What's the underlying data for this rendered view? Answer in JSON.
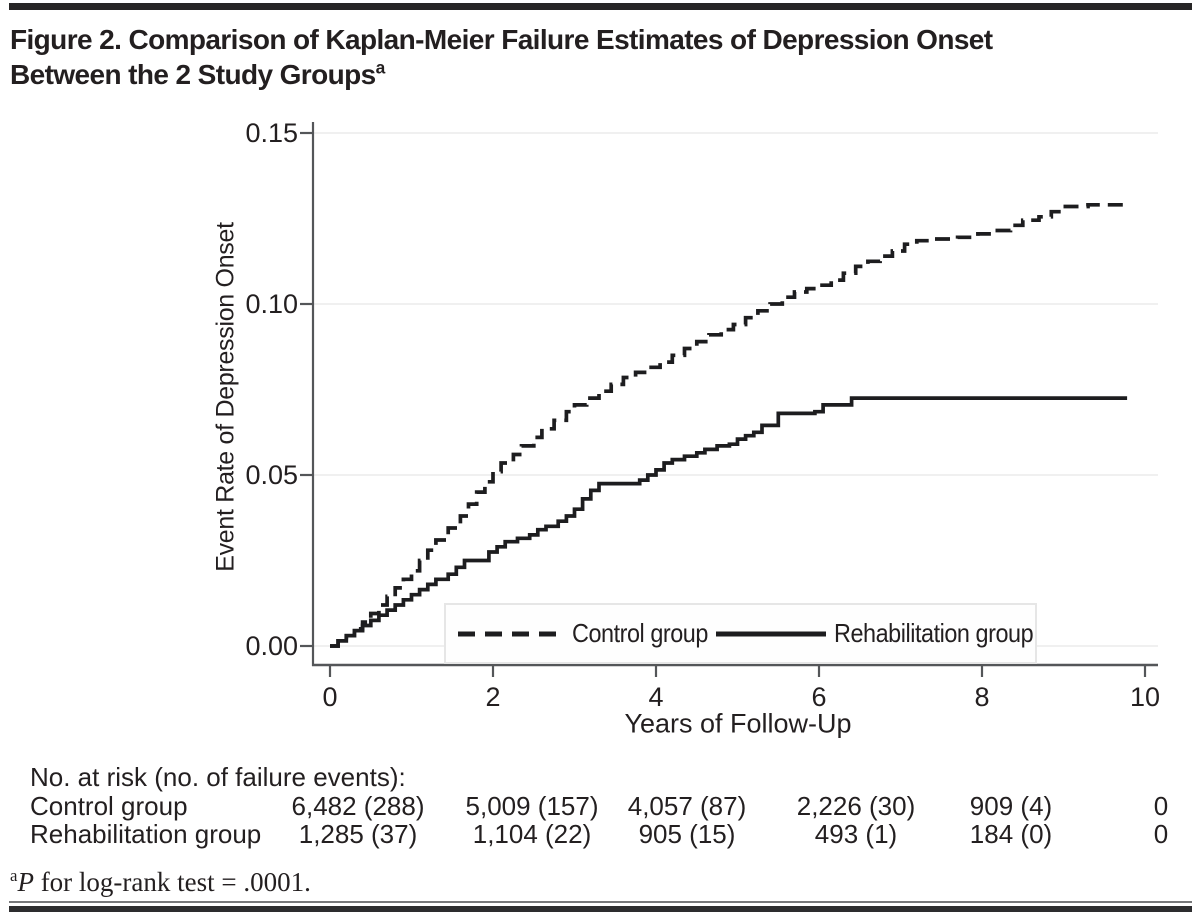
{
  "figure": {
    "title_line1": "Figure 2. Comparison of Kaplan-Meier Failure Estimates of Depression Onset",
    "title_line2": "Between the 2 Study Groups",
    "title_superscript": "a"
  },
  "chart_data": {
    "type": "line",
    "subtype": "kaplan-meier-failure-curves-step",
    "title": "Figure 2. Comparison of Kaplan-Meier Failure Estimates of Depression Onset Between the 2 Study Groups",
    "xlabel": "Years of Follow-Up",
    "ylabel": "Event Rate of Depression Onset",
    "xlim": [
      0,
      10
    ],
    "ylim": [
      0,
      0.15
    ],
    "xticks": {
      "values": [
        0,
        2,
        4,
        6,
        8,
        10
      ],
      "labels": [
        "0",
        "2",
        "4",
        "6",
        "8",
        "10"
      ]
    },
    "yticks": {
      "values": [
        0,
        0.05,
        0.1,
        0.15
      ],
      "labels": [
        "0.00",
        "0.05",
        "0.10",
        "0.15"
      ]
    },
    "grid": "horizontal-light",
    "legend_position": "inside-lower-center",
    "series": [
      {
        "name": "Control group",
        "line_style": "dashed",
        "color": "#1d1d1f",
        "points": [
          [
            0,
            0
          ],
          [
            0.1,
            0.0015
          ],
          [
            0.2,
            0.003
          ],
          [
            0.3,
            0.005
          ],
          [
            0.4,
            0.007
          ],
          [
            0.5,
            0.0095
          ],
          [
            0.6,
            0.012
          ],
          [
            0.7,
            0.0145
          ],
          [
            0.8,
            0.017
          ],
          [
            0.9,
            0.0195
          ],
          [
            1.0,
            0.022
          ],
          [
            1.1,
            0.025
          ],
          [
            1.2,
            0.028
          ],
          [
            1.3,
            0.031
          ],
          [
            1.45,
            0.0345
          ],
          [
            1.6,
            0.038
          ],
          [
            1.7,
            0.0415
          ],
          [
            1.8,
            0.045
          ],
          [
            1.9,
            0.048
          ],
          [
            2.0,
            0.051
          ],
          [
            2.1,
            0.0535
          ],
          [
            2.25,
            0.056
          ],
          [
            2.35,
            0.0585
          ],
          [
            2.5,
            0.061
          ],
          [
            2.6,
            0.0635
          ],
          [
            2.75,
            0.066
          ],
          [
            2.9,
            0.0685
          ],
          [
            3.0,
            0.0705
          ],
          [
            3.15,
            0.0725
          ],
          [
            3.3,
            0.0745
          ],
          [
            3.45,
            0.0765
          ],
          [
            3.6,
            0.0785
          ],
          [
            3.75,
            0.08
          ],
          [
            3.9,
            0.0815
          ],
          [
            4.05,
            0.083
          ],
          [
            4.2,
            0.085
          ],
          [
            4.35,
            0.087
          ],
          [
            4.5,
            0.089
          ],
          [
            4.65,
            0.091
          ],
          [
            4.8,
            0.0925
          ],
          [
            4.95,
            0.094
          ],
          [
            5.1,
            0.096
          ],
          [
            5.25,
            0.098
          ],
          [
            5.4,
            0.1
          ],
          [
            5.55,
            0.102
          ],
          [
            5.7,
            0.1035
          ],
          [
            5.85,
            0.1045
          ],
          [
            6.0,
            0.1055
          ],
          [
            6.15,
            0.107
          ],
          [
            6.3,
            0.109
          ],
          [
            6.45,
            0.111
          ],
          [
            6.6,
            0.1125
          ],
          [
            6.75,
            0.114
          ],
          [
            6.9,
            0.1155
          ],
          [
            7.05,
            0.1175
          ],
          [
            7.2,
            0.1185
          ],
          [
            7.4,
            0.119
          ],
          [
            7.7,
            0.1195
          ],
          [
            7.95,
            0.1205
          ],
          [
            8.15,
            0.1215
          ],
          [
            8.35,
            0.123
          ],
          [
            8.5,
            0.1245
          ],
          [
            8.7,
            0.1255
          ],
          [
            8.85,
            0.127
          ],
          [
            9.0,
            0.1285
          ],
          [
            9.3,
            0.129
          ],
          [
            9.75,
            0.129
          ]
        ]
      },
      {
        "name": "Rehabilitation group",
        "line_style": "solid",
        "color": "#1d1d1f",
        "points": [
          [
            0,
            0
          ],
          [
            0.1,
            0.0015
          ],
          [
            0.2,
            0.003
          ],
          [
            0.3,
            0.0045
          ],
          [
            0.4,
            0.006
          ],
          [
            0.5,
            0.0075
          ],
          [
            0.6,
            0.009
          ],
          [
            0.7,
            0.0105
          ],
          [
            0.8,
            0.012
          ],
          [
            0.9,
            0.0135
          ],
          [
            1.0,
            0.015
          ],
          [
            1.1,
            0.0165
          ],
          [
            1.2,
            0.018
          ],
          [
            1.3,
            0.0195
          ],
          [
            1.45,
            0.021
          ],
          [
            1.55,
            0.023
          ],
          [
            1.65,
            0.025
          ],
          [
            1.95,
            0.0275
          ],
          [
            2.05,
            0.029
          ],
          [
            2.15,
            0.0305
          ],
          [
            2.3,
            0.0315
          ],
          [
            2.45,
            0.0325
          ],
          [
            2.55,
            0.034
          ],
          [
            2.65,
            0.035
          ],
          [
            2.8,
            0.0365
          ],
          [
            2.9,
            0.038
          ],
          [
            3.0,
            0.04
          ],
          [
            3.1,
            0.043
          ],
          [
            3.2,
            0.0455
          ],
          [
            3.3,
            0.0475
          ],
          [
            3.7,
            0.0475
          ],
          [
            3.8,
            0.0485
          ],
          [
            3.9,
            0.05
          ],
          [
            4.0,
            0.0515
          ],
          [
            4.1,
            0.0535
          ],
          [
            4.2,
            0.0545
          ],
          [
            4.35,
            0.0555
          ],
          [
            4.5,
            0.0565
          ],
          [
            4.6,
            0.0575
          ],
          [
            4.75,
            0.0585
          ],
          [
            4.9,
            0.059
          ],
          [
            5.0,
            0.0605
          ],
          [
            5.1,
            0.0615
          ],
          [
            5.2,
            0.0625
          ],
          [
            5.3,
            0.0645
          ],
          [
            5.5,
            0.068
          ],
          [
            5.95,
            0.0685
          ],
          [
            6.05,
            0.0705
          ],
          [
            6.4,
            0.0725
          ],
          [
            9.75,
            0.0725
          ]
        ]
      }
    ]
  },
  "risk_table": {
    "header": "No. at risk (no. of failure events):",
    "time_points": [
      0,
      2,
      4,
      6,
      8,
      10
    ],
    "rows": [
      {
        "label": "Control group",
        "values": [
          "6,482 (288)",
          "5,009 (157)",
          "4,057 (87)",
          "2,226 (30)",
          "909 (4)",
          "0"
        ]
      },
      {
        "label": "Rehabilitation group",
        "values": [
          "1,285 (37)",
          "1,104 (22)",
          "905 (15)",
          "493 (1)",
          "184 (0)",
          "0"
        ]
      }
    ]
  },
  "footnote": {
    "marker": "a",
    "p": "P",
    "text": " for log-rank test = .0001."
  },
  "colors": {
    "text": "#231f20",
    "axis": "#545659",
    "grid": "#ececec",
    "curve": "#1d1d1f",
    "legend_border": "#e6e6e6",
    "top_rule": "#272526",
    "bottom_rule": "#2d2d2f"
  }
}
